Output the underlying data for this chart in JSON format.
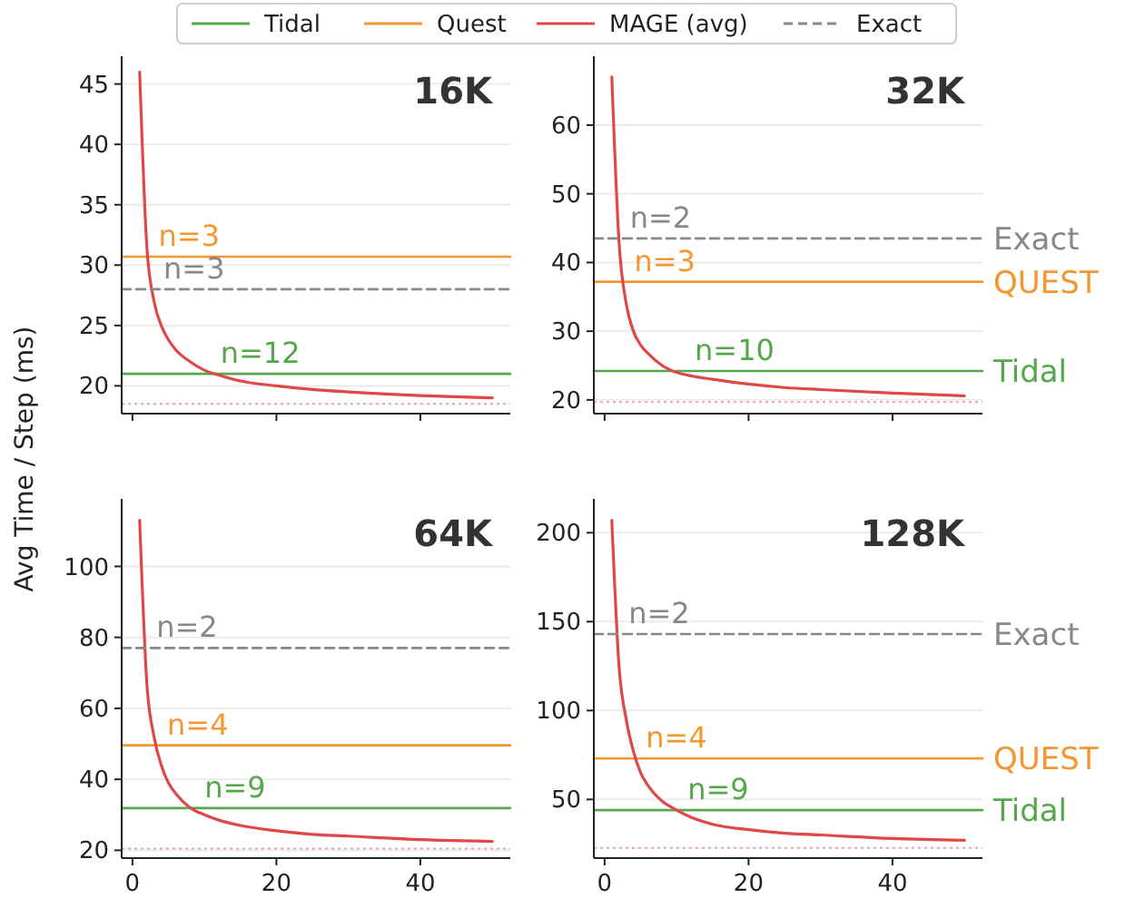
{
  "chart_data": [
    {
      "type": "line",
      "title": "16K",
      "ylabel": "Avg Time / Step (ms)",
      "xlim": [
        -1.5,
        52.5
      ],
      "xticks": [
        0,
        20,
        40
      ],
      "ylim": [
        17.7,
        47
      ],
      "yticks": [
        20,
        25,
        30,
        35,
        40,
        45
      ],
      "grid": "y",
      "legend": "top",
      "tick_labels": "y",
      "series": [
        {
          "name": "Tidal",
          "color": "#55a84a",
          "x": [
            -1.5,
            52.5
          ],
          "values": [
            21.0,
            21.0
          ]
        },
        {
          "name": "Quest",
          "color": "#f5962e",
          "x": [
            -1.5,
            52.5
          ],
          "values": [
            30.7,
            30.7
          ]
        },
        {
          "name": "MAGE (avg)",
          "color": "#e04848",
          "x": [
            1,
            2,
            3,
            4,
            5,
            6,
            8,
            10,
            12,
            15,
            20,
            25,
            30,
            40,
            50
          ],
          "values": [
            46,
            31.5,
            27,
            25,
            23.8,
            23,
            22,
            21.3,
            20.9,
            20.4,
            20,
            19.7,
            19.5,
            19.2,
            19.0
          ]
        },
        {
          "name": "Exact",
          "color": "#888888",
          "line_style": "dashed",
          "x": [
            -1.5,
            52.5
          ],
          "values": [
            28.0,
            28.0
          ]
        }
      ],
      "ref_lines": [
        {
          "axis": "y",
          "value": 18.5,
          "color": "#f2a0a8",
          "line_style": "dotted"
        }
      ],
      "annotations": [
        {
          "text": "n=3",
          "x": 2.1,
          "y": 30.7
        },
        {
          "text": "n=3",
          "x": 2.8,
          "y": 28.0
        },
        {
          "text": "n=12",
          "x": 10.7,
          "y": 21.0
        }
      ]
    },
    {
      "type": "line",
      "title": "32K",
      "xlim": [
        -1.5,
        52.5
      ],
      "xticks": [
        0,
        20,
        40
      ],
      "ylim": [
        18,
        69.5
      ],
      "yticks": [
        20,
        30,
        40,
        50,
        60
      ],
      "grid": "y",
      "legend": false,
      "tick_labels": "y",
      "series": [
        {
          "color": "#55a84a",
          "x": [
            -1.5,
            52.5
          ],
          "values": [
            24.2,
            24.2
          ]
        },
        {
          "color": "#f5962e",
          "x": [
            -1.5,
            52.5
          ],
          "values": [
            37.2,
            37.2
          ]
        },
        {
          "color": "#e04848",
          "x": [
            1,
            2,
            3,
            4,
            5,
            6,
            8,
            10,
            12,
            15,
            20,
            25,
            30,
            40,
            50
          ],
          "values": [
            67,
            43,
            34,
            30,
            28,
            26.8,
            25,
            24,
            23.5,
            23,
            22.3,
            21.8,
            21.5,
            21.0,
            20.6
          ]
        },
        {
          "color": "#888888",
          "line_style": "dashed",
          "x": [
            -1.5,
            52.5
          ],
          "values": [
            43.5,
            43.5
          ]
        }
      ],
      "ref_lines": [
        {
          "axis": "y",
          "value": 19.7,
          "color": "#f2a0a8",
          "line_style": "dotted"
        }
      ],
      "annotations": [
        {
          "text": "n=2",
          "x": 2.0,
          "y": 43.5
        },
        {
          "text": "n=3",
          "x": 2.6,
          "y": 37.2
        },
        {
          "text": "n=10",
          "x": 11,
          "y": 24.2
        },
        {
          "text": "Exact",
          "x": 52.5,
          "y": 43.5
        },
        {
          "text": "QUEST",
          "x": 52.5,
          "y": 37.2
        },
        {
          "text": "Tidal",
          "x": 52.5,
          "y": 24.2
        }
      ]
    },
    {
      "type": "line",
      "title": "64K",
      "xlim": [
        -1.5,
        52.5
      ],
      "xticks": [
        0,
        20,
        40
      ],
      "ylim": [
        17.8,
        118
      ],
      "yticks": [
        20,
        40,
        60,
        80,
        100
      ],
      "grid": "y",
      "legend": false,
      "series": [
        {
          "color": "#55a84a",
          "x": [
            -1.5,
            52.5
          ],
          "values": [
            31.9,
            31.9
          ]
        },
        {
          "color": "#f5962e",
          "x": [
            -1.5,
            52.5
          ],
          "values": [
            49.6,
            49.6
          ]
        },
        {
          "color": "#e04848",
          "x": [
            1,
            2,
            3,
            4,
            5,
            6,
            8,
            10,
            12,
            15,
            20,
            25,
            30,
            40,
            50
          ],
          "values": [
            113,
            67,
            52,
            44,
            39,
            36,
            32,
            30,
            28.5,
            27,
            25.5,
            24.5,
            24,
            23,
            22.5
          ]
        },
        {
          "color": "#888888",
          "line_style": "dashed",
          "x": [
            -1.5,
            52.5
          ],
          "values": [
            77,
            77
          ]
        }
      ],
      "ref_lines": [
        {
          "axis": "y",
          "value": 20.5,
          "color": "#f2a0a8",
          "line_style": "dotted"
        }
      ],
      "annotations": [
        {
          "text": "n=2",
          "x": 1.8,
          "y": 77
        },
        {
          "text": "n=4",
          "x": 3.3,
          "y": 49.6
        },
        {
          "text": "n=9",
          "x": 8.5,
          "y": 31.9
        }
      ]
    },
    {
      "type": "line",
      "title": "128K",
      "xlim": [
        -1.5,
        52.5
      ],
      "xticks": [
        0,
        20,
        40
      ],
      "ylim": [
        17,
        217
      ],
      "yticks": [
        50,
        100,
        150,
        200
      ],
      "grid": "y",
      "legend": false,
      "series": [
        {
          "color": "#55a84a",
          "x": [
            -1.5,
            52.5
          ],
          "values": [
            44,
            44
          ]
        },
        {
          "color": "#f5962e",
          "x": [
            -1.5,
            52.5
          ],
          "values": [
            73,
            73
          ]
        },
        {
          "color": "#e04848",
          "x": [
            1,
            2,
            3,
            4,
            5,
            6,
            8,
            10,
            12,
            15,
            20,
            25,
            30,
            40,
            50
          ],
          "values": [
            207,
            125,
            95,
            77,
            65,
            58,
            49,
            44,
            40,
            36,
            33,
            31,
            30,
            28,
            27
          ]
        },
        {
          "color": "#888888",
          "line_style": "dashed",
          "x": [
            -1.5,
            52.5
          ],
          "values": [
            143,
            143
          ]
        }
      ],
      "ref_lines": [
        {
          "axis": "y",
          "value": 22.8,
          "color": "#f2a0a8",
          "line_style": "dotted"
        }
      ],
      "annotations": [
        {
          "text": "n=2",
          "x": 1.8,
          "y": 143
        },
        {
          "text": "n=4",
          "x": 4.2,
          "y": 73
        },
        {
          "text": "n=9",
          "x": 10,
          "y": 44
        },
        {
          "text": "Exact",
          "x": 52.5,
          "y": 143
        },
        {
          "text": "QUEST",
          "x": 52.5,
          "y": 73
        },
        {
          "text": "Tidal",
          "x": 52.5,
          "y": 44
        }
      ]
    }
  ]
}
